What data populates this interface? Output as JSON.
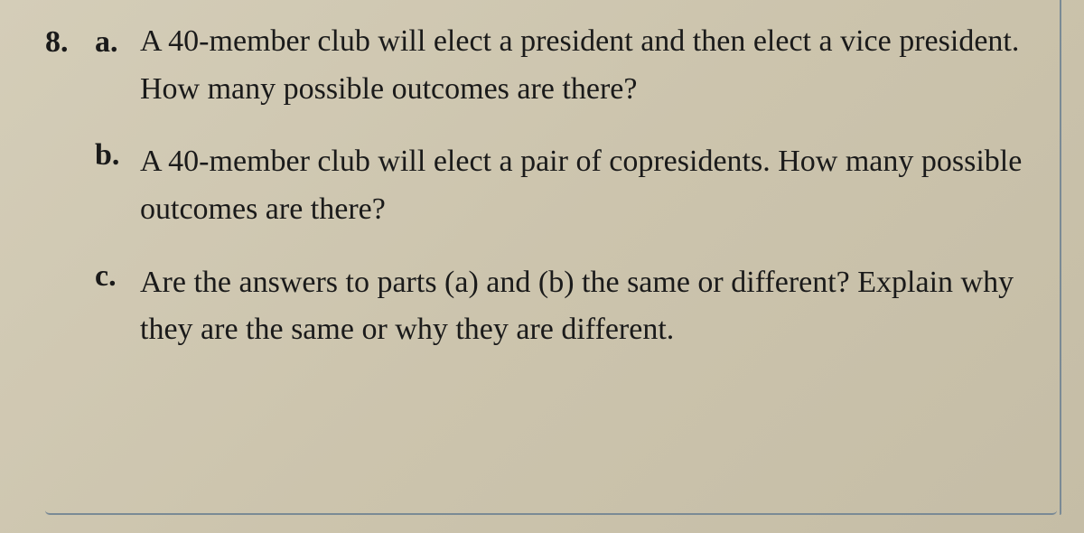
{
  "problem": {
    "number": "8.",
    "parts": [
      {
        "label": "a.",
        "text": "A 40-member club will elect a president and then elect a vice president. How many possible outcomes are there?"
      },
      {
        "label": "b.",
        "text": "A 40-member club will elect a pair of copresidents. How many possible outcomes are there?"
      },
      {
        "label": "c.",
        "text": "Are the answers to parts (a) and (b) the same or different? Explain why they are the same or why they are different."
      }
    ]
  },
  "styling": {
    "background_gradient_start": "#d4cdb8",
    "background_gradient_mid": "#ccc4ad",
    "background_gradient_end": "#c5bda6",
    "text_color": "#1a1a1a",
    "border_color": "#7a8a95",
    "font_size_pt": 34,
    "font_family": "Georgia, Times New Roman, serif",
    "line_height": 1.55
  }
}
